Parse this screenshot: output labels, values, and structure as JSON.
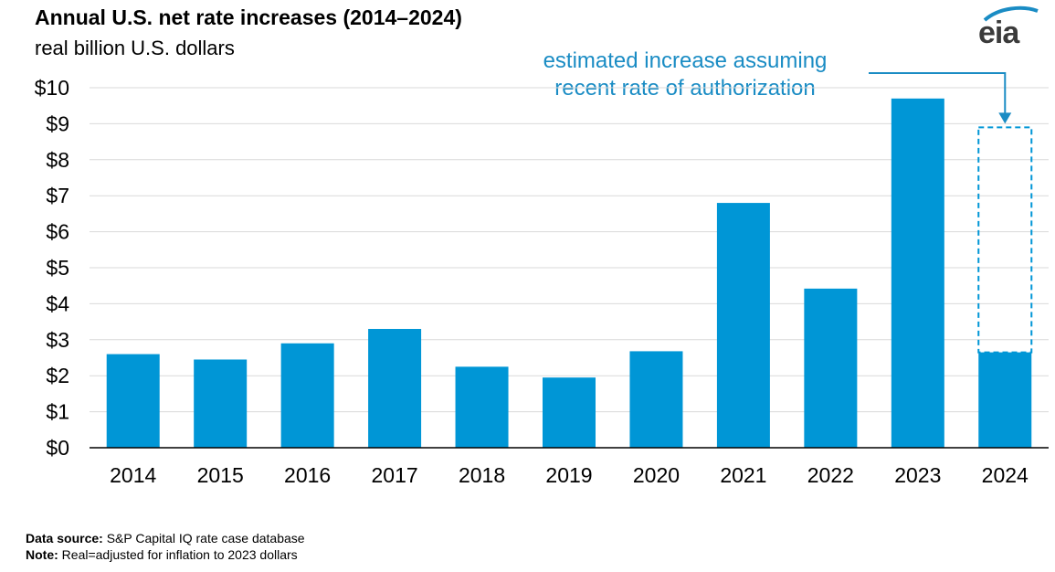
{
  "chart_data": {
    "type": "bar",
    "title": "Annual U.S. net rate increases (2014–2024)",
    "subtitle": "real billion U.S. dollars",
    "ylabel": "real billion U.S. dollars",
    "xlabel": "",
    "categories": [
      "2014",
      "2015",
      "2016",
      "2017",
      "2018",
      "2019",
      "2020",
      "2021",
      "2022",
      "2023",
      "2024"
    ],
    "values": [
      2.6,
      2.45,
      2.9,
      3.3,
      2.25,
      1.95,
      2.68,
      6.8,
      4.42,
      9.7,
      2.65
    ],
    "estimated": {
      "category": "2024",
      "value": 8.9
    },
    "ylim": [
      0,
      10
    ],
    "yticks": [
      "$0",
      "$1",
      "$2",
      "$3",
      "$4",
      "$5",
      "$6",
      "$7",
      "$8",
      "$9",
      "$10"
    ],
    "grid": true,
    "annotation": [
      "estimated increase assuming",
      "recent rate of authorization"
    ]
  },
  "footer": {
    "source_label": "Data source:",
    "source_text": "S&P Capital IQ rate case database",
    "note_label": "Note:",
    "note_text": "Real=adjusted for inflation to 2023 dollars"
  },
  "logo": {
    "text": "eia"
  },
  "colors": {
    "bar": "#0096d6",
    "annotation": "#1a8cc4",
    "grid": "#d9d9d9"
  }
}
